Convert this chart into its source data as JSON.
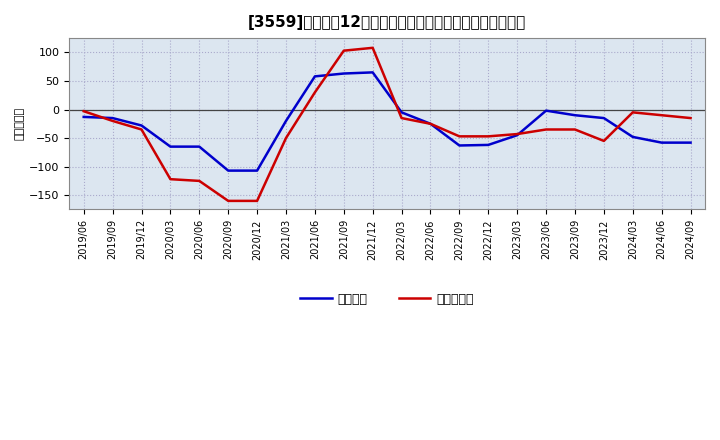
{
  "title": "[3559]　利益の12か月移動合計の対前年同期増減額の推移",
  "ylabel": "（百万円）",
  "background_color": "#ffffff",
  "plot_bg_color": "#dce6f0",
  "grid_color": "#aaaacc",
  "x_labels": [
    "2019/06",
    "2019/09",
    "2019/12",
    "2020/03",
    "2020/06",
    "2020/09",
    "2020/12",
    "2021/03",
    "2021/06",
    "2021/09",
    "2021/12",
    "2022/03",
    "2022/06",
    "2022/09",
    "2022/12",
    "2023/03",
    "2023/06",
    "2023/09",
    "2023/12",
    "2024/03",
    "2024/06",
    "2024/09"
  ],
  "keijo_rieki": [
    -13,
    -15,
    -28,
    -65,
    -65,
    -107,
    -107,
    -20,
    58,
    63,
    65,
    -5,
    -25,
    -63,
    -62,
    -45,
    -2,
    -10,
    -15,
    -48,
    -58,
    -58
  ],
  "touki_jun_rieki": [
    -3,
    -20,
    -35,
    -122,
    -125,
    -160,
    -160,
    -50,
    30,
    103,
    108,
    -15,
    -25,
    -47,
    -47,
    -43,
    -35,
    -35,
    -55,
    -5,
    -10,
    -15
  ],
  "keijo_color": "#0000cc",
  "touki_color": "#cc0000",
  "ylim": [
    -175,
    125
  ],
  "yticks": [
    -150,
    -100,
    -50,
    0,
    50,
    100
  ],
  "legend_keijo": "経常利益",
  "legend_touki": "当期純利益",
  "title_fontsize": 11,
  "tick_fontsize": 8,
  "ylabel_fontsize": 8,
  "legend_fontsize": 9,
  "line_width": 1.8
}
